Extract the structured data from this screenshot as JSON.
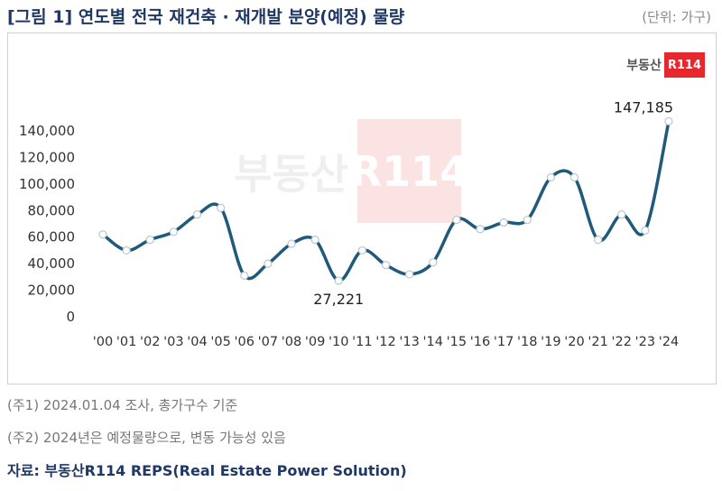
{
  "header": {
    "title": "[그림 1] 연도별 전국 재건축 · 재개발 분양(예정) 물량",
    "unit": "(단위: 가구)"
  },
  "logo": {
    "text": "부동산",
    "box": "R114"
  },
  "chart_data": {
    "type": "line",
    "categories": [
      "'00",
      "'01",
      "'02",
      "'03",
      "'04",
      "'05",
      "'06",
      "'07",
      "'08",
      "'09",
      "'10",
      "'11",
      "'12",
      "'13",
      "'14",
      "'15",
      "'16",
      "'17",
      "'18",
      "'19",
      "'20",
      "'21",
      "'22",
      "'23",
      "'24"
    ],
    "series": [
      {
        "values": [
          62000,
          50000,
          58000,
          64000,
          77000,
          82000,
          31000,
          40000,
          55000,
          58000,
          27221,
          50000,
          39000,
          32000,
          41000,
          73000,
          66000,
          71000,
          73000,
          105000,
          105000,
          58000,
          77000,
          65000,
          147185
        ]
      }
    ],
    "yticks": [
      "0",
      "20,000",
      "40,000",
      "60,000",
      "80,000",
      "100,000",
      "120,000",
      "140,000"
    ],
    "ylim": [
      0,
      140000
    ],
    "annotations": [
      {
        "index": 10,
        "label": "27,221",
        "position": "below"
      },
      {
        "index": 24,
        "label": "147,185",
        "position": "above"
      }
    ],
    "grid": false,
    "line_color": "#1f5a7a"
  },
  "notes": [
    "(주1) 2024.01.04 조사, 총가구수 기준",
    "(주2) 2024년은 예정물량으로, 변동 가능성 있음"
  ],
  "source": "자료: 부동산R114 REPS(Real Estate Power Solution)"
}
